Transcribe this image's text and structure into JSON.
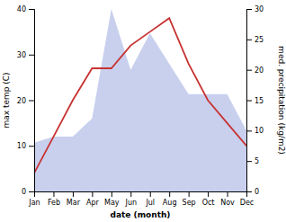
{
  "chart_data": {
    "type": "line",
    "xlabel": "date (month)",
    "ylabel": "max temp (C)",
    "y2label": "med. precipitation (kg/m2)",
    "categories": [
      "Jan",
      "Feb",
      "Mar",
      "Apr",
      "May",
      "Jun",
      "Jul",
      "Aug",
      "Sep",
      "Oct",
      "Nov",
      "Dec"
    ],
    "series": [
      {
        "type": "area",
        "axis": "y2",
        "color": "#c8d0ee",
        "values": [
          8,
          9,
          9,
          12,
          30,
          20,
          26,
          21,
          16,
          16,
          16,
          10
        ]
      },
      {
        "type": "line",
        "color": "#c83232",
        "values": [
          4,
          12,
          20,
          27,
          27,
          32,
          35,
          38,
          28,
          20,
          15,
          10
        ]
      }
    ],
    "ylim": [
      0,
      40
    ],
    "yticks": [
      0,
      10,
      20,
      30,
      40
    ],
    "y2lim": [
      0,
      30
    ],
    "y2ticks": [
      0,
      5,
      10,
      15,
      20,
      25,
      30
    ],
    "grid": false
  }
}
